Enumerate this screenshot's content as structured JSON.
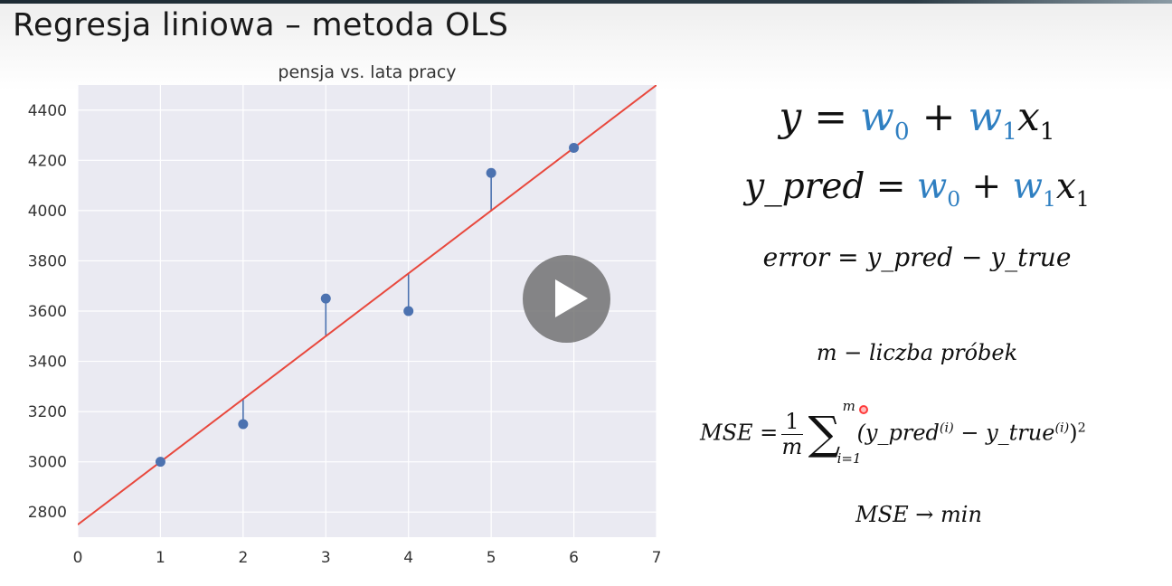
{
  "slide": {
    "title": "Regresja liniowa – metoda OLS"
  },
  "formulas": {
    "eq1": {
      "lhs": "y",
      "eq": "=",
      "w0": "w",
      "w0_sub": "0",
      "plus": "+",
      "w1": "w",
      "w1_sub": "1",
      "x": "x",
      "x_sub": "1"
    },
    "eq2": {
      "lhs": "y_pred",
      "eq": "=",
      "w0": "w",
      "w0_sub": "0",
      "plus": "+",
      "w1": "w",
      "w1_sub": "1",
      "x": "x",
      "x_sub": "1"
    },
    "error": "error = y_pred  − y_true",
    "m_def": "m − liczba próbek",
    "mse": {
      "lhs": "MSE =",
      "num": "1",
      "den": "m",
      "sum_top": "m",
      "sum_bottom": "i=1",
      "open": "(y_pred",
      "sup1": "(i)",
      "minus": " − y_true",
      "sup2": "(i)",
      "close": ")",
      "sup3": "2"
    },
    "mse_min": "MSE → min"
  },
  "colors": {
    "weights": "#2f7fc1",
    "regression_line": "#e8483d",
    "points": "#4c72b0",
    "plot_bg": "#eaeaf2",
    "grid": "#ffffff"
  },
  "icons": {
    "play": "play-icon"
  },
  "chart_data": {
    "type": "scatter",
    "title": "pensja vs. lata pracy",
    "xlabel": "",
    "ylabel": "",
    "xlim": [
      0,
      7
    ],
    "ylim": [
      2700,
      4500
    ],
    "xticks": [
      0,
      1,
      2,
      3,
      4,
      5,
      6,
      7
    ],
    "yticks": [
      2800,
      3000,
      3200,
      3400,
      3600,
      3800,
      4000,
      4200,
      4400
    ],
    "grid": true,
    "points": [
      {
        "x": 1,
        "y": 3000
      },
      {
        "x": 2,
        "y": 3150
      },
      {
        "x": 3,
        "y": 3650
      },
      {
        "x": 4,
        "y": 3600
      },
      {
        "x": 5,
        "y": 4150
      },
      {
        "x": 6,
        "y": 4250
      }
    ],
    "line": {
      "intercept": 2750,
      "slope": 250
    }
  }
}
